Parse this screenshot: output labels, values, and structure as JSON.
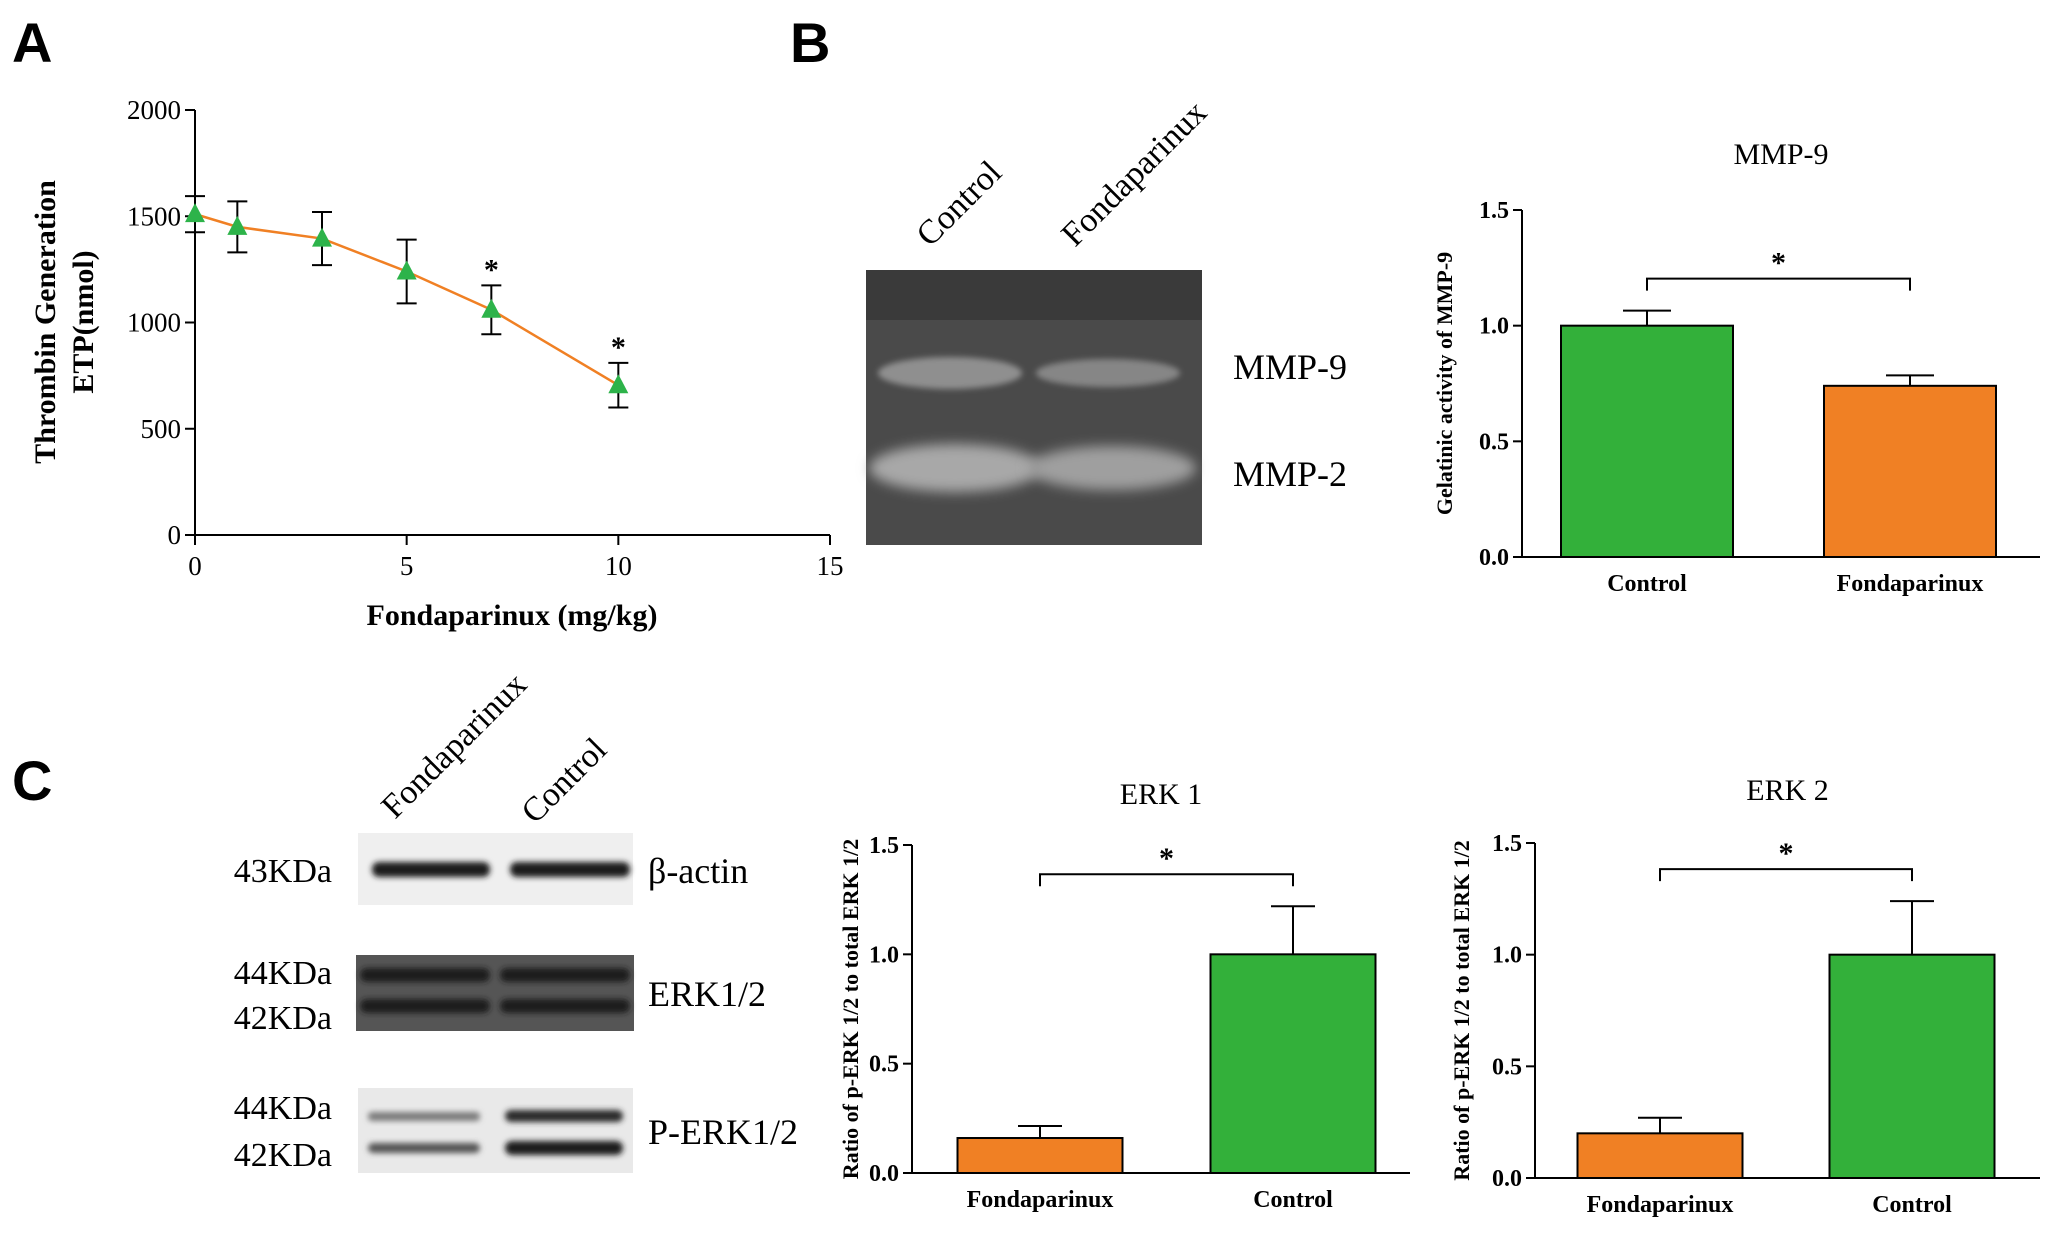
{
  "panels": {
    "a": "A",
    "b": "B",
    "c": "C"
  },
  "colors": {
    "green": "#33b03a",
    "orange": "#f08024",
    "line": "#f08024",
    "marker": "#2db34a"
  },
  "chart_data": [
    {
      "id": "A",
      "type": "line",
      "xlabel": "Fondaparinux (mg/kg)",
      "ylabel_line1": "Thrombin Generation",
      "ylabel_line2": "ETP(nmol)",
      "xlim": [
        0,
        15
      ],
      "ylim": [
        0,
        2000
      ],
      "xticks": [
        "0",
        "5",
        "10",
        "15"
      ],
      "yticks": [
        "0",
        "500",
        "1000",
        "1500",
        "2000"
      ],
      "x": [
        0,
        1,
        3,
        5,
        7,
        10
      ],
      "y": [
        1510,
        1450,
        1395,
        1240,
        1060,
        705
      ],
      "err": [
        85,
        120,
        125,
        150,
        115,
        105
      ],
      "significant": [
        false,
        false,
        false,
        false,
        true,
        true
      ],
      "star": "*"
    },
    {
      "id": "B",
      "type": "bar",
      "title": "MMP-9",
      "ylabel": "Gelatinic activity of MMP-9",
      "categories": [
        "Control",
        "Fondaparinux"
      ],
      "values": [
        1.0,
        0.74
      ],
      "err": [
        0.065,
        0.045
      ],
      "bar_colors": [
        "green",
        "orange"
      ],
      "ylim": [
        0,
        1.5
      ],
      "yticks": [
        "0.0",
        "0.5",
        "1.0",
        "1.5"
      ],
      "star": "*"
    },
    {
      "id": "C1",
      "type": "bar",
      "title": "ERK 1",
      "ylabel": "Ratio of p-ERK 1/2 to total ERK 1/2",
      "categories": [
        "Fondaparinux",
        "Control"
      ],
      "values": [
        0.16,
        1.0
      ],
      "err": [
        0.055,
        0.22
      ],
      "bar_colors": [
        "orange",
        "green"
      ],
      "ylim": [
        0,
        1.5
      ],
      "yticks": [
        "0.0",
        "0.5",
        "1.0",
        "1.5"
      ],
      "star": "*"
    },
    {
      "id": "C2",
      "type": "bar",
      "title": "ERK 2",
      "ylabel": "Ratio of p-ERK 1/2 to total ERK 1/2",
      "categories": [
        "Fondaparinux",
        "Control"
      ],
      "values": [
        0.2,
        1.0
      ],
      "err": [
        0.07,
        0.24
      ],
      "bar_colors": [
        "orange",
        "green"
      ],
      "ylim": [
        0,
        1.5
      ],
      "yticks": [
        "0.0",
        "0.5",
        "1.0",
        "1.5"
      ],
      "star": "*"
    }
  ],
  "gel": {
    "lanes": [
      "Control",
      "Fondaparinux"
    ],
    "bands": [
      "MMP-9",
      "MMP-2"
    ]
  },
  "western": {
    "lanes": [
      "Fondaparinux",
      "Control"
    ],
    "rows": [
      {
        "mw": [
          "43KDa"
        ],
        "label": "β-actin"
      },
      {
        "mw": [
          "44KDa",
          "42KDa"
        ],
        "label": "ERK1/2"
      },
      {
        "mw": [
          "44KDa",
          "42KDa"
        ],
        "label": "P-ERK1/2"
      }
    ]
  }
}
